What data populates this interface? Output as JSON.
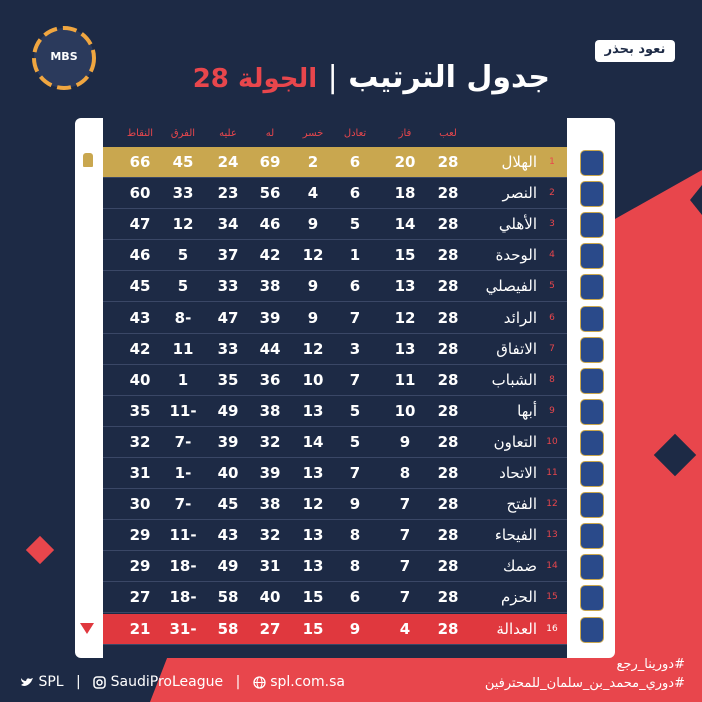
{
  "header": {
    "brand": "نعود بحذر",
    "logo": "MBS",
    "title": "جدول الترتيب",
    "separator": "|",
    "round": "الجولة 28"
  },
  "table": {
    "columns": [
      "لعب",
      "فاز",
      "تعادل",
      "خسر",
      "له",
      "عليه",
      "الفرق",
      "النقاط"
    ],
    "rows": [
      [
        1,
        "الهلال",
        28,
        20,
        6,
        2,
        69,
        24,
        45,
        66
      ],
      [
        2,
        "النصر",
        28,
        18,
        6,
        4,
        56,
        23,
        33,
        60
      ],
      [
        3,
        "الأهلي",
        28,
        14,
        5,
        9,
        46,
        34,
        12,
        47
      ],
      [
        4,
        "الوحدة",
        28,
        15,
        1,
        12,
        42,
        37,
        5,
        46
      ],
      [
        5,
        "الفيصلي",
        28,
        13,
        6,
        9,
        38,
        33,
        5,
        45
      ],
      [
        6,
        "الرائد",
        28,
        12,
        7,
        9,
        39,
        47,
        -8,
        43
      ],
      [
        7,
        "الاتفاق",
        28,
        13,
        3,
        12,
        44,
        33,
        11,
        42
      ],
      [
        8,
        "الشباب",
        28,
        11,
        7,
        10,
        36,
        35,
        1,
        40
      ],
      [
        9,
        "أبها",
        28,
        10,
        5,
        13,
        38,
        49,
        -11,
        35
      ],
      [
        10,
        "التعاون",
        28,
        9,
        5,
        14,
        32,
        39,
        -7,
        32
      ],
      [
        11,
        "الاتحاد",
        28,
        8,
        7,
        13,
        39,
        40,
        -1,
        31
      ],
      [
        12,
        "الفتح",
        28,
        7,
        9,
        12,
        38,
        45,
        -7,
        30
      ],
      [
        13,
        "الفيحاء",
        28,
        7,
        8,
        13,
        32,
        43,
        -11,
        29
      ],
      [
        14,
        "ضمك",
        28,
        7,
        8,
        13,
        31,
        49,
        -18,
        29
      ],
      [
        15,
        "الحزم",
        28,
        7,
        6,
        15,
        40,
        58,
        -18,
        27
      ],
      [
        16,
        "العدالة",
        28,
        4,
        9,
        15,
        27,
        58,
        -31,
        21
      ]
    ]
  },
  "footer": {
    "hashtags": [
      "#دورينا_رجع",
      "#دوري_محمد_بن_سلمان_للمحترفين"
    ],
    "social": [
      "SPL",
      "SaudiProLeague",
      "spl.com.sa"
    ],
    "divider": "|"
  }
}
